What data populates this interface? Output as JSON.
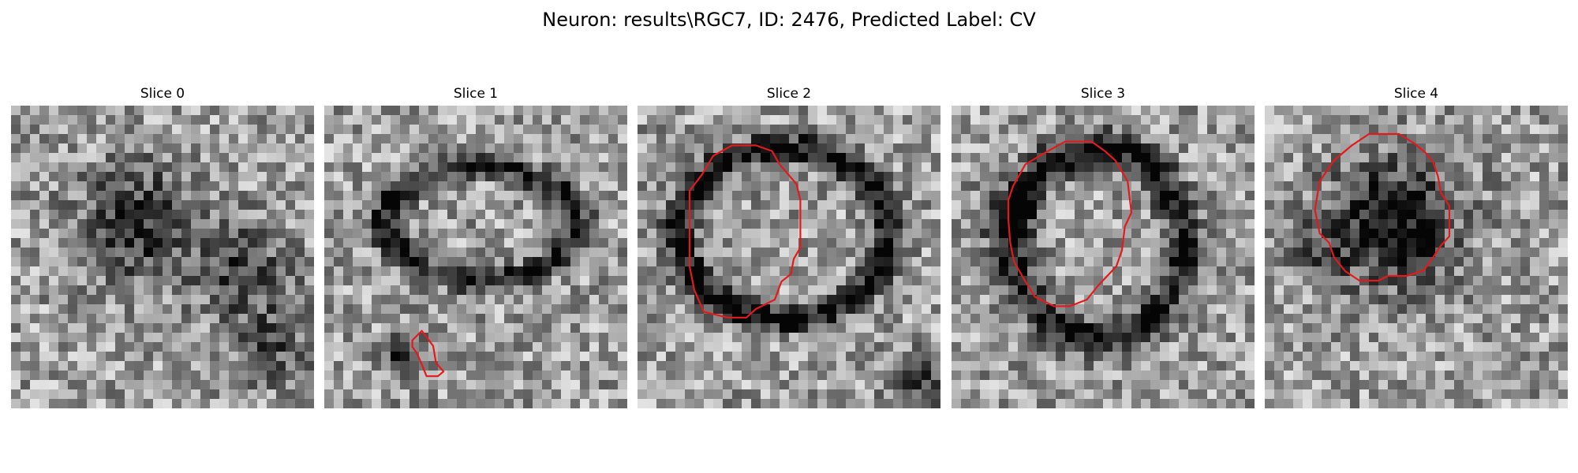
{
  "figure": {
    "title": "Neuron: results\\RGC7, ID: 2476, Predicted Label: CV"
  },
  "panels": [
    {
      "title": "Slice 0",
      "has_contour": false
    },
    {
      "title": "Slice 1",
      "has_contour": true
    },
    {
      "title": "Slice 2",
      "has_contour": true
    },
    {
      "title": "Slice 3",
      "has_contour": true
    },
    {
      "title": "Slice 4",
      "has_contour": true
    }
  ],
  "colors": {
    "contour": "#e31a1c",
    "background": "#ffffff"
  }
}
